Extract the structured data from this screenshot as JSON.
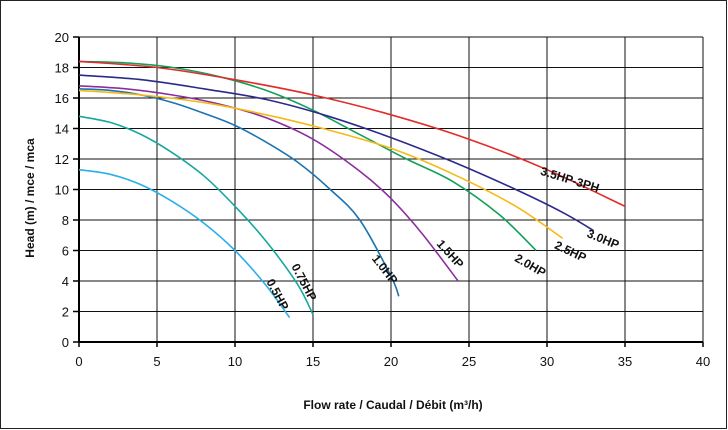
{
  "chart_data": {
    "type": "line",
    "title": "",
    "xlabel": "Flow rate  / Caudal / Débit (m³/h)",
    "ylabel": "Head (m) / mce / mca",
    "xlim": [
      0,
      40
    ],
    "ylim": [
      0,
      20
    ],
    "x_ticks": [
      0,
      5,
      10,
      15,
      20,
      25,
      30,
      35,
      40
    ],
    "y_ticks": [
      0,
      2,
      4,
      6,
      8,
      10,
      12,
      14,
      16,
      18,
      20
    ],
    "grid": true,
    "series": [
      {
        "name": "0.5HP",
        "color": "#2ab0e6",
        "x": [
          0,
          2,
          4,
          6,
          8,
          10,
          12,
          13.5
        ],
        "y": [
          11.3,
          11.0,
          10.3,
          9.2,
          7.8,
          6.0,
          3.7,
          1.6
        ]
      },
      {
        "name": "0.75HP",
        "color": "#16a8a0",
        "x": [
          0,
          2,
          4,
          6,
          8,
          10,
          12,
          14,
          15
        ],
        "y": [
          14.8,
          14.4,
          13.6,
          12.4,
          10.9,
          8.9,
          6.6,
          3.8,
          1.8
        ]
      },
      {
        "name": "1.0HP",
        "color": "#1a73b3",
        "x": [
          0,
          2,
          4,
          6,
          8,
          10,
          12,
          14,
          16,
          18,
          20,
          20.5
        ],
        "y": [
          16.6,
          16.5,
          16.2,
          15.7,
          15.0,
          14.2,
          13.1,
          11.8,
          10.1,
          8.0,
          4.3,
          3.0
        ]
      },
      {
        "name": "1.5HP",
        "color": "#8b2f9e",
        "x": [
          0,
          3,
          6,
          9,
          12,
          15,
          18,
          20,
          22,
          24.3
        ],
        "y": [
          16.8,
          16.6,
          16.2,
          15.6,
          14.7,
          13.3,
          11.2,
          9.4,
          7.1,
          4.0
        ]
      },
      {
        "name": "2.0HP",
        "color": "#12a05a",
        "x": [
          0,
          3,
          6,
          9,
          12,
          15,
          18,
          21,
          24,
          27,
          29.3
        ],
        "y": [
          18.4,
          18.3,
          18.0,
          17.4,
          16.5,
          15.2,
          13.6,
          12.0,
          10.5,
          8.3,
          6.0
        ]
      },
      {
        "name": "2.5HP",
        "color": "#f6b915",
        "x": [
          0,
          4,
          8,
          12,
          16,
          20,
          24,
          28,
          31
        ],
        "y": [
          16.5,
          16.2,
          15.7,
          14.9,
          13.9,
          12.7,
          11.0,
          8.9,
          6.8
        ]
      },
      {
        "name": "3.0HP",
        "color": "#2b2a8a",
        "x": [
          0,
          4,
          8,
          12,
          16,
          20,
          24,
          28,
          31,
          33
        ],
        "y": [
          17.5,
          17.2,
          16.6,
          15.9,
          14.8,
          13.4,
          11.8,
          10.0,
          8.5,
          7.3
        ]
      },
      {
        "name": "3.5HP-3PH",
        "color": "#e32b2b",
        "x": [
          0,
          5,
          10,
          15,
          20,
          25,
          30,
          35
        ],
        "y": [
          18.4,
          18.0,
          17.2,
          16.2,
          14.9,
          13.3,
          11.3,
          8.9
        ]
      }
    ],
    "annotations": [
      {
        "text": "0.5HP",
        "x": 12.5,
        "y": 3.0,
        "angle": 62
      },
      {
        "text": "0.75HP",
        "x": 14.2,
        "y": 3.8,
        "angle": 62
      },
      {
        "text": "1.0HP",
        "x": 19.4,
        "y": 4.6,
        "angle": 52
      },
      {
        "text": "1.5HP",
        "x": 23.6,
        "y": 5.6,
        "angle": 48
      },
      {
        "text": "2.0HP",
        "x": 28.8,
        "y": 4.8,
        "angle": 30
      },
      {
        "text": "2.5HP",
        "x": 31.4,
        "y": 5.7,
        "angle": 25
      },
      {
        "text": "3.0HP",
        "x": 33.5,
        "y": 6.5,
        "angle": 22
      },
      {
        "text": "3.5HP-3PH",
        "x": 31.4,
        "y": 10.4,
        "angle": 17
      }
    ]
  }
}
